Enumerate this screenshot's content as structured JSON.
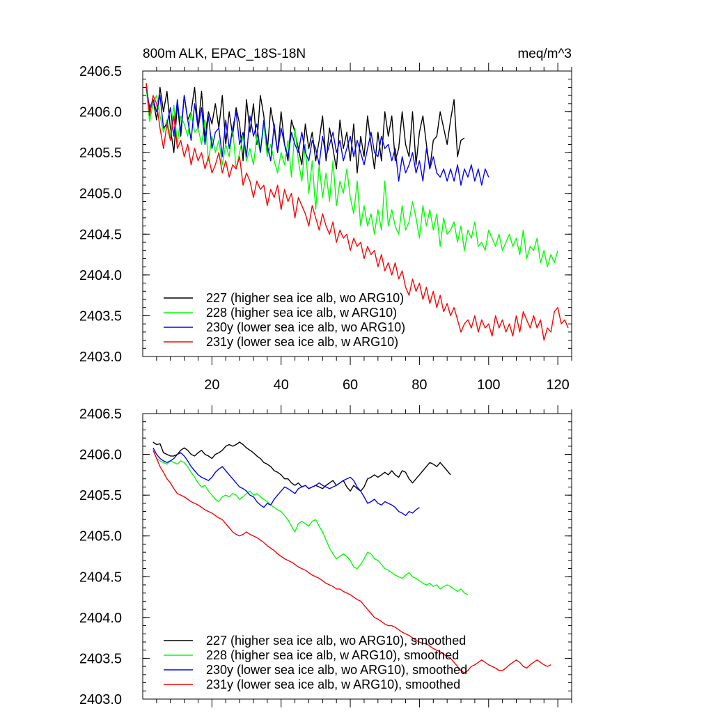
{
  "chart_data": [
    {
      "type": "line",
      "title": "800m ALK, EPAC_18S-18N",
      "units": "meq/m^3",
      "xlim": [
        0,
        124
      ],
      "ylim": [
        2403.0,
        2406.5
      ],
      "xticks": [
        20,
        40,
        60,
        80,
        100,
        120
      ],
      "xtick_labels": [
        "20",
        "40",
        "60",
        "80",
        "100",
        "120"
      ],
      "yticks": [
        2403.0,
        2403.5,
        2404.0,
        2404.5,
        2405.0,
        2405.5,
        2406.0,
        2406.5
      ],
      "ytick_labels": [
        "2403.0",
        "2403.5",
        "2404.0",
        "2404.5",
        "2405.0",
        "2405.5",
        "2406.0",
        "2406.5"
      ],
      "legend_position": "bottom-left",
      "series": [
        {
          "name": "227 (higher sea ice alb, wo ARG10)",
          "color": "#000000",
          "x_start": 1,
          "values": [
            2406.35,
            2406.0,
            2406.15,
            2405.9,
            2406.3,
            2406.0,
            2406.25,
            2405.8,
            2405.5,
            2406.1,
            2405.7,
            2406.2,
            2405.9,
            2406.0,
            2406.3,
            2405.8,
            2406.25,
            2405.7,
            2406.0,
            2405.85,
            2406.1,
            2405.8,
            2406.2,
            2405.6,
            2406.0,
            2405.7,
            2406.05,
            2405.85,
            2405.4,
            2406.15,
            2405.75,
            2406.1,
            2405.6,
            2406.2,
            2405.95,
            2405.5,
            2406.05,
            2405.8,
            2405.5,
            2406.0,
            2405.6,
            2405.4,
            2405.9,
            2405.75,
            2405.55,
            2405.35,
            2405.85,
            2405.55,
            2405.75,
            2405.4,
            2405.65,
            2405.95,
            2405.4,
            2405.8,
            2405.55,
            2405.3,
            2405.9,
            2405.55,
            2405.75,
            2405.4,
            2405.85,
            2405.25,
            2405.7,
            2405.45,
            2405.95,
            2405.6,
            2405.3,
            2405.75,
            2405.4,
            2406.0,
            2405.7,
            2405.95,
            2405.4,
            2405.55,
            2406.0,
            2405.6,
            2405.45,
            2406.0,
            2405.35,
            2405.75,
            2405.95,
            2405.6,
            2405.3,
            2405.65,
            2405.7,
            2406.0,
            2405.8,
            2405.6,
            2405.9,
            2406.15,
            2405.45,
            2405.65,
            2405.68
          ]
        },
        {
          "name": "228 (higher sea ice alb, w ARG10)",
          "color": "#00ff00",
          "x_start": 1,
          "values": [
            2406.3,
            2405.88,
            2406.1,
            2406.2,
            2405.95,
            2405.75,
            2405.9,
            2405.7,
            2406.08,
            2405.6,
            2405.95,
            2405.85,
            2405.7,
            2406.0,
            2405.75,
            2405.8,
            2405.6,
            2405.9,
            2405.4,
            2405.7,
            2405.5,
            2405.65,
            2405.35,
            2405.6,
            2405.45,
            2405.8,
            2405.3,
            2405.5,
            2405.7,
            2405.4,
            2405.55,
            2405.35,
            2405.7,
            2405.5,
            2405.85,
            2405.45,
            2405.6,
            2405.4,
            2405.25,
            2405.5,
            2405.35,
            2405.65,
            2405.2,
            2405.8,
            2405.4,
            2405.15,
            2405.6,
            2405.0,
            2405.4,
            2404.8,
            2405.35,
            2404.95,
            2405.25,
            2404.9,
            2405.4,
            2404.85,
            2405.15,
            2405.0,
            2405.3,
            2404.95,
            2404.75,
            2405.15,
            2404.6,
            2404.85,
            2404.6,
            2404.75,
            2404.5,
            2404.8,
            2404.55,
            2405.15,
            2404.6,
            2404.8,
            2404.6,
            2404.5,
            2404.85,
            2404.55,
            2404.65,
            2404.9,
            2404.7,
            2404.45,
            2404.85,
            2404.6,
            2404.8,
            2404.55,
            2404.75,
            2404.35,
            2404.7,
            2404.5,
            2404.55,
            2404.65,
            2404.4,
            2404.6,
            2404.3,
            2404.55,
            2404.45,
            2404.65,
            2404.35,
            2404.4,
            2404.3,
            2404.55,
            2404.45,
            2404.35,
            2404.5,
            2404.3,
            2404.4,
            2404.5,
            2404.35,
            2404.45,
            2404.25,
            2404.55,
            2404.2,
            2404.35,
            2404.3,
            2404.45,
            2404.15,
            2404.3,
            2404.1,
            2404.25,
            2404.15,
            2404.3
          ]
        },
        {
          "name": "230y (lower sea ice alb, wo ARG10)",
          "color": "#0000ff",
          "x_start": 1,
          "values": [
            2406.3,
            2406.05,
            2406.15,
            2406.0,
            2406.2,
            2405.8,
            2405.85,
            2406.05,
            2405.7,
            2406.15,
            2405.75,
            2406.2,
            2405.9,
            2405.65,
            2406.1,
            2405.8,
            2406.05,
            2405.6,
            2405.95,
            2405.55,
            2405.75,
            2405.8,
            2405.45,
            2405.9,
            2405.55,
            2405.8,
            2406.0,
            2405.6,
            2405.75,
            2405.45,
            2405.95,
            2405.7,
            2405.85,
            2405.5,
            2405.9,
            2405.6,
            2405.4,
            2405.85,
            2405.5,
            2405.8,
            2405.6,
            2405.45,
            2405.75,
            2405.6,
            2405.5,
            2405.75,
            2405.5,
            2405.4,
            2405.65,
            2405.55,
            2405.35,
            2405.7,
            2405.45,
            2405.6,
            2405.75,
            2405.5,
            2405.65,
            2405.4,
            2405.55,
            2405.7,
            2405.45,
            2405.65,
            2405.5,
            2405.35,
            2405.55,
            2405.75,
            2405.5,
            2405.45,
            2405.7,
            2405.55,
            2405.6,
            2405.4,
            2405.55,
            2405.15,
            2405.45,
            2405.25,
            2405.35,
            2405.5,
            2405.25,
            2405.4,
            2405.15,
            2405.55,
            2405.3,
            2405.45,
            2405.25,
            2405.2,
            2405.3,
            2405.15,
            2405.3,
            2405.15,
            2405.35,
            2405.1,
            2405.3,
            2405.2,
            2405.35,
            2405.15,
            2405.3,
            2405.1,
            2405.3,
            2405.2
          ]
        },
        {
          "name": "231y (lower sea ice alb, w ARG10)",
          "color": "#ff0000",
          "x_start": 1,
          "values": [
            2406.35,
            2405.95,
            2406.2,
            2406.1,
            2405.8,
            2405.55,
            2405.85,
            2405.65,
            2405.95,
            2405.55,
            2405.65,
            2405.45,
            2405.6,
            2405.35,
            2405.55,
            2405.4,
            2405.5,
            2405.3,
            2405.45,
            2405.25,
            2405.35,
            2405.5,
            2405.25,
            2405.4,
            2405.2,
            2405.35,
            2405.3,
            2405.45,
            2405.1,
            2405.25,
            2405.15,
            2404.95,
            2405.15,
            2405.05,
            2405.1,
            2404.85,
            2405.05,
            2404.95,
            2405.1,
            2404.8,
            2405.05,
            2404.9,
            2405.0,
            2404.7,
            2404.95,
            2404.85,
            2404.75,
            2404.6,
            2404.85,
            2404.7,
            2404.55,
            2404.75,
            2404.6,
            2404.5,
            2404.65,
            2404.4,
            2404.55,
            2404.45,
            2404.5,
            2404.3,
            2404.45,
            2404.35,
            2404.4,
            2404.2,
            2404.35,
            2404.25,
            2404.3,
            2404.1,
            2404.25,
            2404.05,
            2404.15,
            2404.0,
            2404.15,
            2403.95,
            2404.05,
            2403.85,
            2403.75,
            2403.95,
            2403.8,
            2403.9,
            2403.7,
            2403.85,
            2403.65,
            2403.8,
            2403.6,
            2403.75,
            2403.55,
            2403.65,
            2403.5,
            2403.6,
            2403.45,
            2403.3,
            2403.4,
            2403.45,
            2403.35,
            2403.5,
            2403.3,
            2403.45,
            2403.35,
            2403.4,
            2403.25,
            2403.5,
            2403.35,
            2403.45,
            2403.3,
            2403.4,
            2403.25,
            2403.5,
            2403.3,
            2403.55,
            2403.45,
            2403.35,
            2403.5,
            2403.35,
            2403.45,
            2403.2,
            2403.35,
            2403.3,
            2403.55,
            2403.6,
            2403.4,
            2403.45,
            2403.35
          ]
        }
      ]
    },
    {
      "type": "line",
      "title": "",
      "units": "",
      "xlim": [
        0,
        124
      ],
      "ylim": [
        2403.0,
        2406.5
      ],
      "xticks": [
        20,
        40,
        60,
        80,
        100,
        120
      ],
      "xtick_labels": [],
      "yticks": [
        2403.0,
        2403.5,
        2404.0,
        2404.5,
        2405.0,
        2405.5,
        2406.0,
        2406.5
      ],
      "ytick_labels": [
        "2403.0",
        "2403.5",
        "2404.0",
        "2404.5",
        "2405.0",
        "2405.5",
        "2406.0",
        "2406.5"
      ],
      "legend_position": "bottom-left",
      "series": [
        {
          "name": "227 (higher sea ice alb, wo ARG10), smoothed",
          "color": "#000000",
          "x_start": 3,
          "values": [
            2406.15,
            2406.12,
            2406.13,
            2406.02,
            2406.0,
            2405.98,
            2405.98,
            2406.0,
            2406.05,
            2406.08,
            2406.05,
            2406.0,
            2405.98,
            2406.02,
            2406.05,
            2406.0,
            2405.98,
            2405.95,
            2406.0,
            2406.02,
            2406.05,
            2406.1,
            2406.12,
            2406.1,
            2406.12,
            2406.15,
            2406.12,
            2406.08,
            2406.05,
            2406.02,
            2405.98,
            2405.95,
            2405.9,
            2405.88,
            2405.85,
            2405.8,
            2405.78,
            2405.75,
            2405.7,
            2405.7,
            2405.65,
            2405.62,
            2405.65,
            2405.6,
            2405.62,
            2405.58,
            2405.6,
            2405.62,
            2405.6,
            2405.58,
            2405.62,
            2405.65,
            2405.68,
            2405.62,
            2405.65,
            2405.68,
            2405.6,
            2405.55,
            2405.62,
            2405.58,
            2405.55,
            2405.6,
            2405.7,
            2405.72,
            2405.75,
            2405.72,
            2405.75,
            2405.78,
            2405.75,
            2405.8,
            2405.75,
            2405.72,
            2405.8,
            2405.78,
            2405.7,
            2405.65,
            2405.7,
            2405.75,
            2405.8,
            2405.85,
            2405.9,
            2405.88,
            2405.85,
            2405.9,
            2405.85,
            2405.8,
            2405.75
          ]
        },
        {
          "name": "228 (higher sea ice alb, w ARG10), smoothed",
          "color": "#00ff00",
          "x_start": 3,
          "values": [
            2406.05,
            2405.95,
            2405.92,
            2405.9,
            2405.88,
            2405.92,
            2405.9,
            2405.88,
            2405.92,
            2405.9,
            2405.85,
            2405.78,
            2405.72,
            2405.65,
            2405.6,
            2405.62,
            2405.55,
            2405.5,
            2405.45,
            2405.42,
            2405.48,
            2405.5,
            2405.48,
            2405.52,
            2405.5,
            2405.45,
            2405.48,
            2405.52,
            2405.55,
            2405.5,
            2405.52,
            2405.48,
            2405.45,
            2405.42,
            2405.38,
            2405.35,
            2405.32,
            2405.3,
            2405.25,
            2405.2,
            2405.12,
            2405.05,
            2405.15,
            2405.18,
            2405.15,
            2405.12,
            2405.18,
            2405.2,
            2405.12,
            2405.05,
            2404.95,
            2404.85,
            2404.78,
            2404.72,
            2404.75,
            2404.78,
            2404.75,
            2404.7,
            2404.62,
            2404.6,
            2404.65,
            2404.72,
            2404.8,
            2404.78,
            2404.72,
            2404.7,
            2404.65,
            2404.6,
            2404.58,
            2404.55,
            2404.52,
            2404.5,
            2404.48,
            2404.52,
            2404.55,
            2404.5,
            2404.48,
            2404.45,
            2404.42,
            2404.4,
            2404.42,
            2404.38,
            2404.4,
            2404.35,
            2404.38,
            2404.4,
            2404.38,
            2404.35,
            2404.32,
            2404.35,
            2404.3,
            2404.28
          ]
        },
        {
          "name": "230y (lower sea ice alb, wo ARG10), smoothed",
          "color": "#0000ff",
          "x_start": 3,
          "values": [
            2406.08,
            2406.0,
            2405.95,
            2405.92,
            2405.9,
            2405.92,
            2405.95,
            2406.0,
            2406.02,
            2405.98,
            2405.92,
            2405.85,
            2405.8,
            2405.75,
            2405.72,
            2405.7,
            2405.68,
            2405.72,
            2405.78,
            2405.82,
            2405.85,
            2405.8,
            2405.75,
            2405.7,
            2405.65,
            2405.6,
            2405.58,
            2405.55,
            2405.5,
            2405.48,
            2405.42,
            2405.38,
            2405.35,
            2405.4,
            2405.38,
            2405.45,
            2405.5,
            2405.55,
            2405.6,
            2405.58,
            2405.55,
            2405.52,
            2405.58,
            2405.6,
            2405.62,
            2405.58,
            2405.6,
            2405.62,
            2405.65,
            2405.62,
            2405.6,
            2405.58,
            2405.6,
            2405.62,
            2405.65,
            2405.68,
            2405.7,
            2405.72,
            2405.68,
            2405.6,
            2405.55,
            2405.48,
            2405.4,
            2405.42,
            2405.45,
            2405.4,
            2405.38,
            2405.42,
            2405.4,
            2405.38,
            2405.35,
            2405.3,
            2405.28,
            2405.25,
            2405.3,
            2405.28,
            2405.32,
            2405.35
          ]
        },
        {
          "name": "231y (lower sea ice alb, w ARG10), smoothed",
          "color": "#ff0000",
          "x_start": 3,
          "values": [
            2406.05,
            2405.95,
            2405.85,
            2405.78,
            2405.7,
            2405.65,
            2405.58,
            2405.52,
            2405.5,
            2405.48,
            2405.45,
            2405.42,
            2405.4,
            2405.38,
            2405.35,
            2405.32,
            2405.3,
            2405.28,
            2405.25,
            2405.22,
            2405.2,
            2405.15,
            2405.1,
            2405.05,
            2405.02,
            2405.0,
            2405.02,
            2405.05,
            2405.02,
            2405.0,
            2404.98,
            2404.95,
            2404.92,
            2404.88,
            2404.85,
            2404.82,
            2404.78,
            2404.75,
            2404.72,
            2404.7,
            2404.68,
            2404.65,
            2404.62,
            2404.6,
            2404.58,
            2404.55,
            2404.52,
            2404.5,
            2404.48,
            2404.45,
            2404.42,
            2404.4,
            2404.38,
            2404.35,
            2404.35,
            2404.32,
            2404.3,
            2404.28,
            2404.25,
            2404.22,
            2404.2,
            2404.15,
            2404.1,
            2404.05,
            2404.0,
            2403.98,
            2403.95,
            2403.92,
            2403.9,
            2403.9,
            2403.88,
            2403.85,
            2403.82,
            2403.8,
            2403.78,
            2403.75,
            2403.72,
            2403.7,
            2403.68,
            2403.68,
            2403.65,
            2403.62,
            2403.6,
            2403.58,
            2403.55,
            2403.52,
            2403.5,
            2403.45,
            2403.4,
            2403.35,
            2403.32,
            2403.35,
            2403.4,
            2403.42,
            2403.45,
            2403.48,
            2403.45,
            2403.42,
            2403.4,
            2403.38,
            2403.35,
            2403.35,
            2403.38,
            2403.42,
            2403.45,
            2403.48,
            2403.45,
            2403.4,
            2403.38,
            2403.42,
            2403.45,
            2403.48,
            2403.45,
            2403.42,
            2403.4,
            2403.42
          ]
        }
      ]
    }
  ]
}
